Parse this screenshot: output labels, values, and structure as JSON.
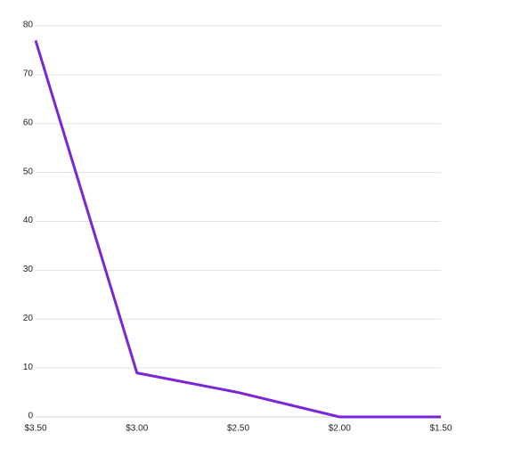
{
  "chart_data": {
    "type": "line",
    "categories": [
      "$3.50",
      "$3.00",
      "$2.50",
      "$2.00",
      "$1.50"
    ],
    "series": [
      {
        "color": "#7b26d6",
        "values": [
          77,
          9,
          5,
          0,
          0
        ]
      }
    ],
    "ylim": [
      0,
      80
    ],
    "yticks": [
      0,
      10,
      20,
      30,
      40,
      50,
      60,
      70,
      80
    ],
    "grid": true
  }
}
